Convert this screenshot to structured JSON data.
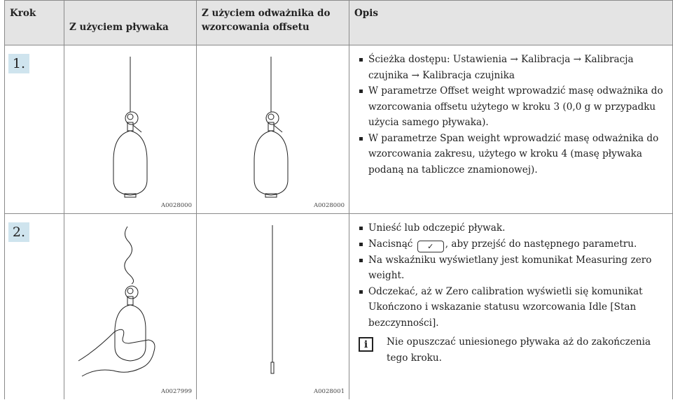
{
  "header": [
    "Krok",
    "Z użyciem pływaka",
    "Z użyciem odważnika do wzorcowania offsetu",
    "Opis"
  ],
  "rows": [
    {
      "step": "1.",
      "image1": "A0028000",
      "image2": "A0028000",
      "items": [
        "Ścieżka dostępu: Ustawienia → Kalibracja → Kalibracja czujnika → Kalibracja czujnika",
        "W parametrze Offset weight wprowadzić masę odważnika do wzorcowania offsetu użytego w kroku 3 (0,0 g w przypadku użycia samego pływaka).",
        "W parametrze Span weight wprowadzić masę odważnika do wzorcowania zakresu, użytego w kroku 4 (masę pływaka podaną na tabliczce znamionowej)."
      ]
    },
    {
      "step": "2.",
      "image1": "A0027999",
      "image2": "A0028001",
      "items": [
        "Unieść lub odczepić pływak.",
        {
          "before": "Nacisnąć",
          "after": ", aby przejść do następnego parametru."
        },
        "Na wskaźniku wyświetlany jest komunikat Measuring zero weight.",
        "Odczekać, aż w Zero calibration wyświetli się komunikat Ukończono i wskazanie statusu wzorcowania Idle [Stan bezczynności]."
      ],
      "note": "Nie opuszczać uniesionego pływaka aż do zakończenia tego kroku."
    }
  ]
}
